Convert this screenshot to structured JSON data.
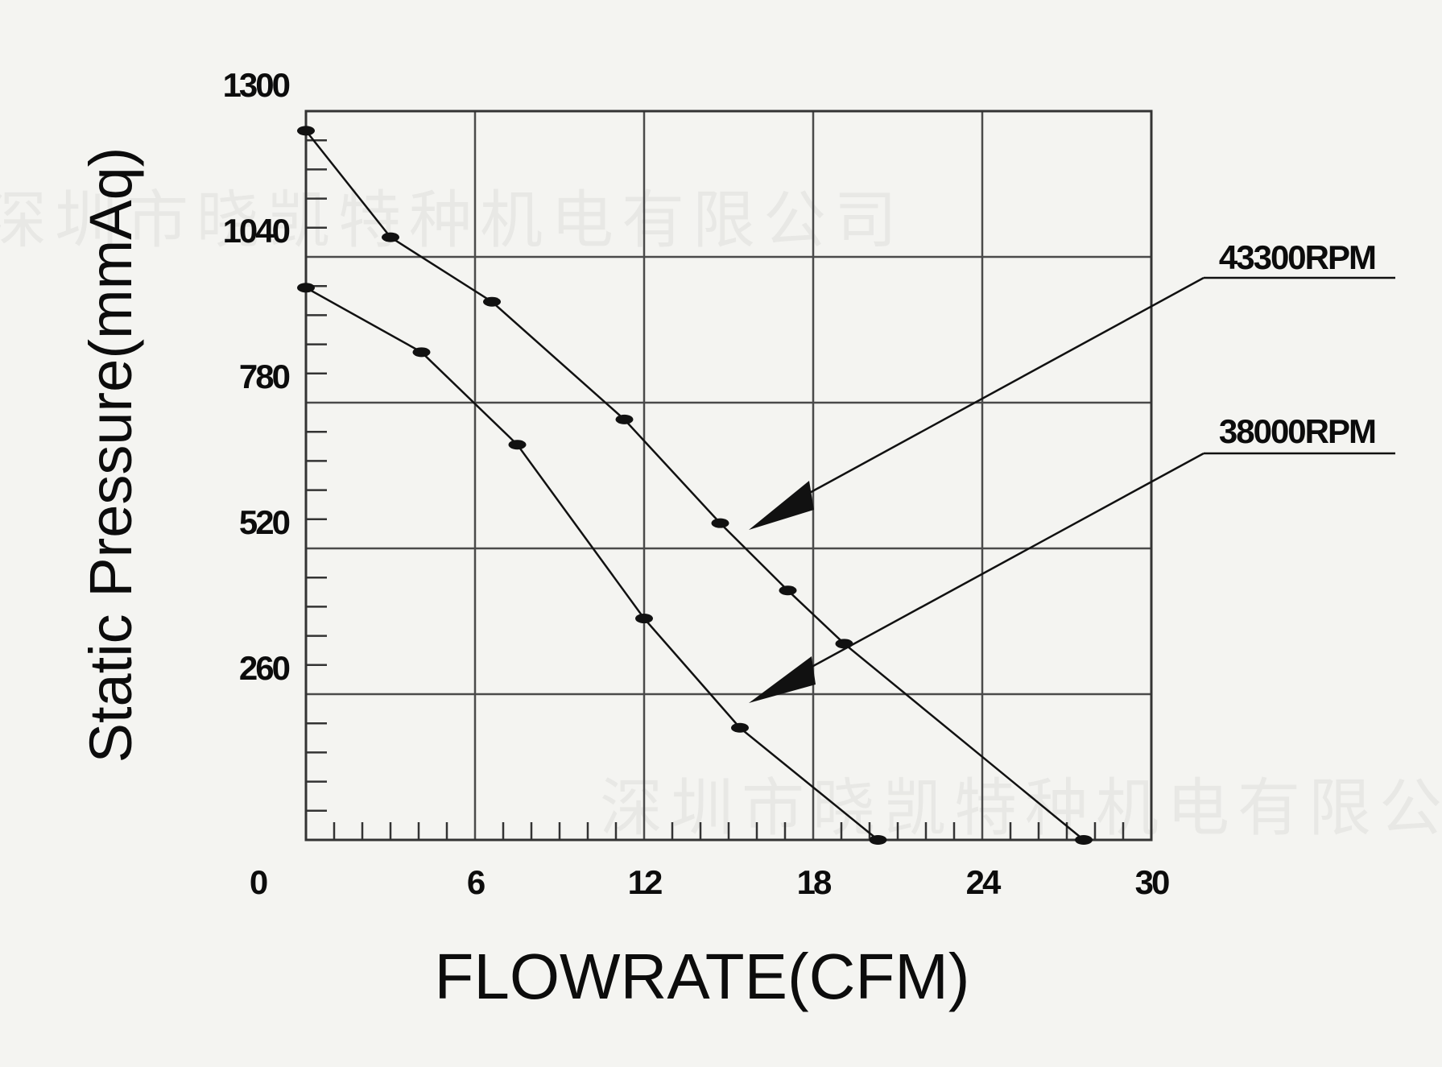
{
  "chart_data": {
    "type": "line",
    "xlabel": "FLOWRATE(CFM)",
    "ylabel": "Static Pressure(mmAq)",
    "xlim": [
      0,
      30
    ],
    "ylim": [
      0,
      1300
    ],
    "x_ticks": [
      0,
      6,
      12,
      18,
      24,
      30
    ],
    "x_tick_labels": [
      "0",
      "6",
      "12",
      "18",
      "24",
      "30"
    ],
    "y_ticks": [
      260,
      520,
      780,
      1040,
      1300
    ],
    "y_tick_labels": [
      "260",
      "520",
      "780",
      "1040",
      "1300"
    ],
    "grid": true,
    "series": [
      {
        "name": "43300RPM",
        "x": [
          0,
          3,
          6.6,
          11.3,
          14.7,
          17.1,
          19.1,
          27.6
        ],
        "y": [
          1265,
          1075,
          960,
          750,
          565,
          445,
          350,
          0
        ]
      },
      {
        "name": "38000RPM",
        "x": [
          0,
          4.1,
          7.5,
          12,
          15.4,
          20.3
        ],
        "y": [
          985,
          870,
          705,
          395,
          200,
          0
        ]
      }
    ],
    "colors": {
      "line": "#111111",
      "grid": "#4a4a4a",
      "background": "#f4f4f1"
    }
  },
  "watermarks": [
    "深圳市晓凯特种机电有限公司",
    "深圳市晓凯特种机电有限公司"
  ]
}
